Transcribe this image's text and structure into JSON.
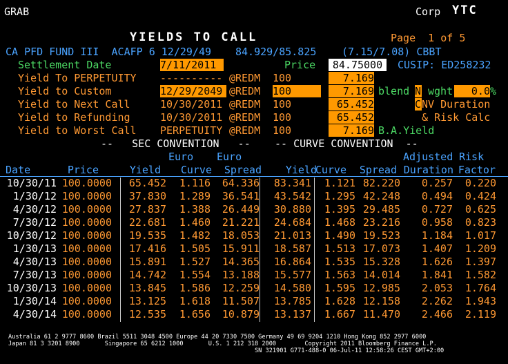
{
  "header": {
    "left": "GRAB",
    "market": "Corp",
    "function": "YTC",
    "title": "YIELDS TO CALL",
    "page": "Page  1 of 5"
  },
  "security": {
    "name": "CA PFD FUND III  ACAFP 6 12/29/49",
    "bid_ask": "84.929/85.825",
    "yields": "(7.15/7.08) CBBT"
  },
  "settlement": {
    "label": "Settlement Date",
    "date": "7/11/2011",
    "price_label": "Price",
    "price": "84.75000",
    "cusip": "CUSIP: ED258232"
  },
  "yield_rows": [
    {
      "label": "Yield To PERPETUITY",
      "date": "----------",
      "redm": "@REDM",
      "price": "100",
      "yield": "7.169"
    },
    {
      "label": "Yield to Custom",
      "date": "12/29/2049",
      "redm": "@REDM",
      "price": "100",
      "yield": "7.169"
    },
    {
      "label": "Yield to Next Call",
      "date": "10/30/2011",
      "redm": "@REDM",
      "price": "100",
      "yield": "65.452"
    },
    {
      "label": "Yield to Refunding",
      "date": "10/30/2011",
      "redm": "@REDM",
      "price": "100",
      "yield": "65.452"
    },
    {
      "label": "Yield to Worst Call",
      "date": "PERPETUITY",
      "redm": "@REDM",
      "price": "100",
      "yield": "7.169"
    }
  ],
  "right_panel": {
    "blend": "blend",
    "n": "N",
    "wght": "wght",
    "wght_val": "0.0",
    "pct": "%",
    "cnv_c": "C",
    "cnv_rest": "NV Duration",
    "risk": "& Risk Calc",
    "bayield": "B.A.Yield"
  },
  "conventions": {
    "sec": "--   SEC CONVENTION   --",
    "curve": "-- CURVE CONVENTION  --"
  },
  "table": {
    "header_top": [
      "Euro",
      "Euro",
      "Adjusted",
      "Risk"
    ],
    "columns": [
      "Date",
      "Price",
      "Yield",
      "Curve",
      "Spread",
      "Yield",
      "Curve",
      "Spread",
      "Duration",
      "Factor"
    ],
    "rows": [
      [
        "10/30/11",
        "100.0000",
        "65.452",
        "1.116",
        "64.336",
        "83.341",
        "1.121",
        "82.220",
        "0.257",
        "0.220"
      ],
      [
        "1/30/12",
        "100.0000",
        "37.830",
        "1.289",
        "36.541",
        "43.542",
        "1.295",
        "42.248",
        "0.494",
        "0.424"
      ],
      [
        "4/30/12",
        "100.0000",
        "27.837",
        "1.388",
        "26.449",
        "30.880",
        "1.395",
        "29.485",
        "0.727",
        "0.625"
      ],
      [
        "7/30/12",
        "100.0000",
        "22.681",
        "1.460",
        "21.221",
        "24.684",
        "1.468",
        "23.216",
        "0.958",
        "0.823"
      ],
      [
        "10/30/12",
        "100.0000",
        "19.535",
        "1.482",
        "18.053",
        "21.013",
        "1.490",
        "19.523",
        "1.184",
        "1.017"
      ],
      [
        "1/30/13",
        "100.0000",
        "17.416",
        "1.505",
        "15.911",
        "18.587",
        "1.513",
        "17.073",
        "1.407",
        "1.209"
      ],
      [
        "4/30/13",
        "100.0000",
        "15.891",
        "1.527",
        "14.365",
        "16.864",
        "1.535",
        "15.328",
        "1.626",
        "1.397"
      ],
      [
        "7/30/13",
        "100.0000",
        "14.742",
        "1.554",
        "13.188",
        "15.577",
        "1.563",
        "14.014",
        "1.841",
        "1.582"
      ],
      [
        "10/30/13",
        "100.0000",
        "13.845",
        "1.586",
        "12.259",
        "14.580",
        "1.595",
        "12.985",
        "2.053",
        "1.764"
      ],
      [
        "1/30/14",
        "100.0000",
        "13.125",
        "1.618",
        "11.507",
        "13.785",
        "1.628",
        "12.158",
        "2.262",
        "1.943"
      ],
      [
        "4/30/14",
        "100.0000",
        "12.535",
        "1.656",
        "10.879",
        "13.137",
        "1.667",
        "11.470",
        "2.466",
        "2.119"
      ]
    ]
  },
  "footer": {
    "line1": "Australia 61 2 9777 8600 Brazil 5511 3048 4500 Europe 44 20 7330 7500 Germany 49 69 9204 1210 Hong Kong 852 2977 6000",
    "line2": "Japan 81 3 3201 8900       Singapore 65 6212 1000       U.S. 1 212 318 2000        Copyright 2011 Bloomberg Finance L.P.",
    "line3": "SN 321901 G771-488-0 06-Jul-11 12:58:26 CEST GMT+2:00"
  }
}
